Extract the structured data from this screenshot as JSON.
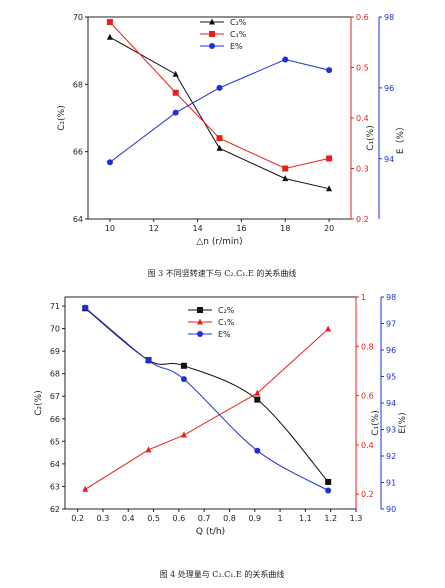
{
  "captions": {
    "fig3": "图 3 不同竖转速下与 C₂.C₁.E 的关系曲线",
    "fig4": "图 4 处理量与 C₂.C₁.E 的关系曲线"
  },
  "colors": {
    "c2": "#111111",
    "c1": "#e8201a",
    "e": "#1f2fdc"
  },
  "chart_data": [
    {
      "type": "line",
      "x_axis": {
        "label": "△n (r/min)",
        "ticks": [
          10,
          12,
          14,
          16,
          18,
          20
        ],
        "range": [
          9,
          21
        ]
      },
      "y_left": {
        "label": "C₂(%)",
        "ticks": [
          64,
          66,
          68,
          70
        ],
        "range": [
          64,
          70
        ]
      },
      "y_right1": {
        "label": "C₁(%)",
        "ticks": [
          0.2,
          0.3,
          0.4,
          0.5,
          0.6
        ],
        "range": [
          0.2,
          0.6
        ]
      },
      "y_right2": {
        "label": "E（%）",
        "ticks": [
          94,
          96,
          98
        ],
        "range": [
          92.3,
          98
        ]
      },
      "legend": {
        "position": "top-center",
        "entries": [
          "C₂%",
          "C₁%",
          "E%"
        ]
      },
      "series": [
        {
          "name": "C₂%",
          "axis": "y_left",
          "marker": "triangle",
          "x": [
            10,
            13,
            15,
            18,
            20
          ],
          "values": [
            69.4,
            68.3,
            66.1,
            65.2,
            64.9
          ]
        },
        {
          "name": "C₁%",
          "axis": "y_right1",
          "marker": "square",
          "x": [
            10,
            13,
            15,
            18,
            20
          ],
          "values": [
            0.59,
            0.45,
            0.36,
            0.3,
            0.32
          ]
        },
        {
          "name": "E%",
          "axis": "y_right2",
          "marker": "circle",
          "x": [
            10,
            13,
            15,
            18,
            20
          ],
          "values": [
            93.9,
            95.3,
            96.0,
            96.8,
            96.5
          ]
        }
      ]
    },
    {
      "type": "line",
      "x_axis": {
        "label": "Q (t/h)",
        "ticks": [
          0.2,
          0.3,
          0.4,
          0.5,
          0.6,
          0.7,
          0.8,
          0.9,
          1.0,
          1.1,
          1.2,
          1.3
        ],
        "range": [
          0.15,
          1.3
        ]
      },
      "y_left": {
        "label": "C₂(%)",
        "ticks": [
          62,
          63,
          64,
          65,
          66,
          67,
          68,
          69,
          70,
          71
        ],
        "range": [
          62,
          71.4
        ]
      },
      "y_right1": {
        "label": "C₁(%)",
        "ticks": [
          0.2,
          0.4,
          0.6,
          0.8,
          1.0
        ],
        "range": [
          0.14,
          1.0
        ]
      },
      "y_right2": {
        "label": "E(%)",
        "ticks": [
          90,
          91,
          92,
          93,
          94,
          95,
          96,
          97,
          98
        ],
        "range": [
          90,
          98
        ]
      },
      "legend": {
        "position": "top-center",
        "entries": [
          "C₂%",
          "C₁%",
          "E%"
        ]
      },
      "series": [
        {
          "name": "C₂%",
          "axis": "y_left",
          "marker": "square",
          "smooth": true,
          "x": [
            0.23,
            0.48,
            0.62,
            0.91,
            1.19
          ],
          "values": [
            70.9,
            68.6,
            68.35,
            66.85,
            63.2
          ]
        },
        {
          "name": "C₁%",
          "axis": "y_right1",
          "marker": "triangle",
          "smooth": false,
          "x": [
            0.23,
            0.48,
            0.62,
            0.91,
            1.19
          ],
          "values": [
            0.22,
            0.38,
            0.44,
            0.61,
            0.87
          ]
        },
        {
          "name": "E%",
          "axis": "y_right2",
          "marker": "circle",
          "smooth": true,
          "x": [
            0.23,
            0.48,
            0.62,
            0.91,
            1.19
          ],
          "values": [
            97.6,
            95.6,
            94.9,
            92.2,
            90.7
          ]
        }
      ]
    }
  ]
}
